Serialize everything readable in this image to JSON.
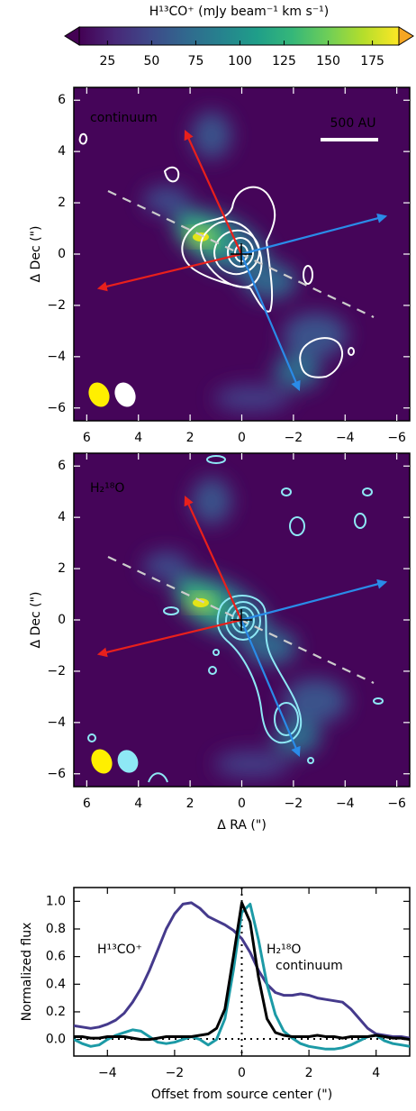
{
  "chart_data": [
    {
      "type": "colorbar",
      "label": "H¹³CO⁺ (mJy beam⁻¹ km s⁻¹)",
      "colormap": "viridis",
      "lim": [
        9,
        190
      ],
      "ticks": [
        25,
        50,
        75,
        100,
        125,
        150,
        175
      ]
    },
    {
      "type": "image",
      "annotations": [
        "continuum",
        "500 AU"
      ],
      "ylabel": "Δ Dec (\")",
      "xlim": [
        6.5,
        -6.5
      ],
      "ylim": [
        -6.5,
        6.5
      ],
      "xticks": [
        6,
        4,
        2,
        0,
        {
          "value": -2,
          "label": "−2"
        },
        {
          "value": -4,
          "label": "−4"
        },
        {
          "value": -6,
          "label": "−6"
        }
      ],
      "yticks": [
        {
          "value": -6,
          "label": "−6"
        },
        {
          "value": -4,
          "label": "−4"
        },
        {
          "value": -2,
          "label": "−2"
        },
        0,
        2,
        4,
        6
      ]
    },
    {
      "type": "image",
      "annotations": [
        "H₂¹⁸O"
      ],
      "xlabel": "Δ RA (\")",
      "ylabel": "Δ Dec (\")",
      "xlim": [
        6.5,
        -6.5
      ],
      "ylim": [
        -6.5,
        6.5
      ],
      "xticks": [
        6,
        4,
        2,
        0,
        {
          "value": -2,
          "label": "−2"
        },
        {
          "value": -4,
          "label": "−4"
        },
        {
          "value": -6,
          "label": "−6"
        }
      ],
      "yticks": [
        {
          "value": -6,
          "label": "−6"
        },
        {
          "value": -4,
          "label": "−4"
        },
        {
          "value": -2,
          "label": "−2"
        },
        0,
        2,
        4,
        6
      ]
    },
    {
      "type": "line",
      "xlabel": "Offset from source center (\")",
      "ylabel": "Normalized flux",
      "xlim": [
        -5,
        5
      ],
      "ylim": [
        -0.12,
        1.1
      ],
      "xticks": [
        {
          "value": -4,
          "label": "−4"
        },
        {
          "value": -2,
          "label": "−2"
        },
        0,
        2,
        4
      ],
      "yticks": [
        {
          "value": 0,
          "label": "0.0"
        },
        {
          "value": 0.2,
          "label": "0.2"
        },
        {
          "value": 0.4,
          "label": "0.4"
        },
        {
          "value": 0.6,
          "label": "0.6"
        },
        {
          "value": 0.8,
          "label": "0.8"
        },
        {
          "value": 1,
          "label": "1.0"
        }
      ],
      "x": [
        -5,
        -4.75,
        -4.5,
        -4.25,
        -4,
        -3.75,
        -3.5,
        -3.25,
        -3,
        -2.75,
        -2.5,
        -2.25,
        -2,
        -1.75,
        -1.5,
        -1.25,
        -1,
        -0.75,
        -0.5,
        -0.25,
        0,
        0.25,
        0.5,
        0.75,
        1,
        1.25,
        1.5,
        1.75,
        2,
        2.25,
        2.5,
        2.75,
        3,
        3.25,
        3.5,
        3.75,
        4,
        4.25,
        4.5,
        4.75,
        5
      ],
      "series": [
        {
          "name": "H¹³CO⁺",
          "color": "#453a8c",
          "values": [
            0.1,
            0.09,
            0.08,
            0.09,
            0.11,
            0.14,
            0.19,
            0.27,
            0.37,
            0.5,
            0.65,
            0.8,
            0.91,
            0.98,
            0.99,
            0.95,
            0.89,
            0.86,
            0.83,
            0.79,
            0.73,
            0.63,
            0.5,
            0.4,
            0.34,
            0.32,
            0.32,
            0.33,
            0.32,
            0.3,
            0.29,
            0.28,
            0.27,
            0.22,
            0.15,
            0.08,
            0.04,
            0.03,
            0.02,
            0.02,
            0.01
          ]
        },
        {
          "name": "H₂¹⁸O",
          "color": "#1c9aa6",
          "values": [
            0,
            -0.03,
            -0.05,
            -0.04,
            0,
            0.03,
            0.05,
            0.07,
            0.06,
            0.02,
            -0.02,
            -0.03,
            -0.02,
            0,
            0.02,
            0,
            -0.04,
            0,
            0.15,
            0.5,
            0.92,
            0.98,
            0.72,
            0.4,
            0.18,
            0.06,
            0.01,
            -0.03,
            -0.05,
            -0.06,
            -0.07,
            -0.07,
            -0.06,
            -0.04,
            -0.01,
            0.02,
            0.03,
            -0.01,
            -0.03,
            -0.04,
            -0.05
          ]
        },
        {
          "name": "continuum",
          "color": "#000000",
          "values": [
            0.02,
            0.02,
            0.01,
            0.01,
            0.02,
            0.02,
            0.02,
            0.01,
            0,
            0,
            0.01,
            0.02,
            0.02,
            0.02,
            0.02,
            0.03,
            0.04,
            0.08,
            0.22,
            0.6,
            0.99,
            0.85,
            0.45,
            0.15,
            0.05,
            0.03,
            0.02,
            0.02,
            0.02,
            0.03,
            0.02,
            0.02,
            0.01,
            0.02,
            0.02,
            0.02,
            0.03,
            0.02,
            0.01,
            0.01,
            0
          ]
        }
      ]
    }
  ]
}
